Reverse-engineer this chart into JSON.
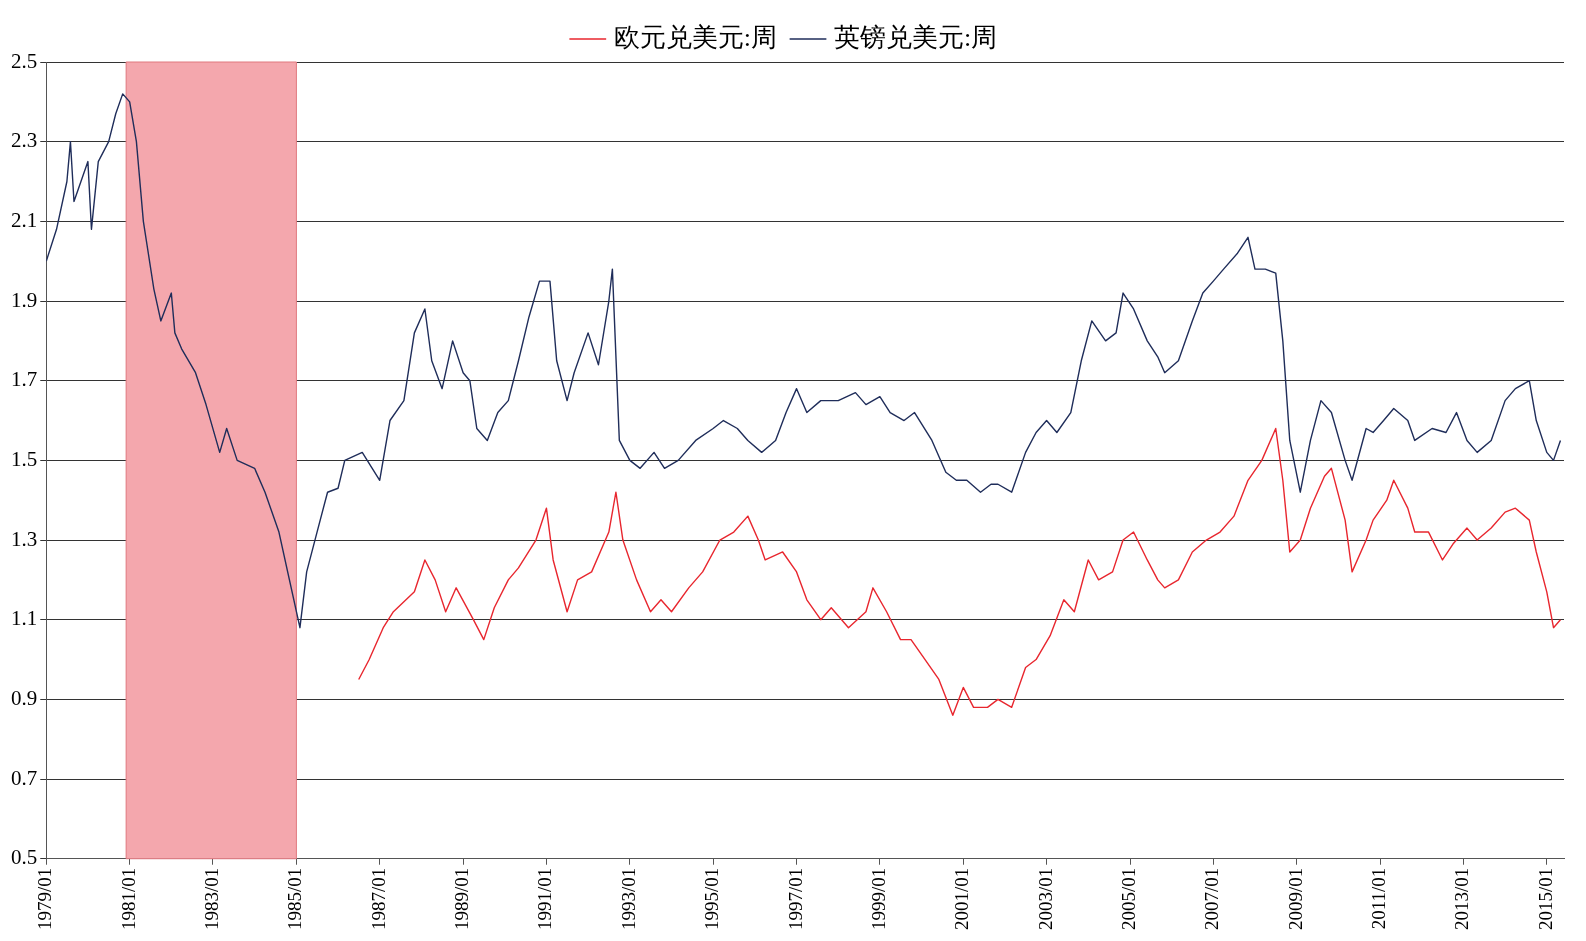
{
  "chart_data": {
    "type": "line",
    "legend": "top",
    "grid": "y",
    "marker": "none",
    "xlim": [
      "1979-01",
      "2015-06"
    ],
    "ylim": [
      0.5,
      2.5
    ],
    "yticks": [
      0.5,
      0.7,
      0.9,
      1.1,
      1.3,
      1.5,
      1.7,
      1.9,
      2.1,
      2.3,
      2.5
    ],
    "xticks": [
      {
        "value": "1979-01",
        "label": "1979/01"
      },
      {
        "value": "1981-01",
        "label": "1981/01"
      },
      {
        "value": "1983-01",
        "label": "1983/01"
      },
      {
        "value": "1985-01",
        "label": "1985/01"
      },
      {
        "value": "1987-01",
        "label": "1987/01"
      },
      {
        "value": "1989-01",
        "label": "1989/01"
      },
      {
        "value": "1991-01",
        "label": "1991/01"
      },
      {
        "value": "1993-01",
        "label": "1993/01"
      },
      {
        "value": "1995-01",
        "label": "1995/01"
      },
      {
        "value": "1997-01",
        "label": "1997/01"
      },
      {
        "value": "1999-01",
        "label": "1999/01"
      },
      {
        "value": "2001-01",
        "label": "2001/01"
      },
      {
        "value": "2003-01",
        "label": "2003/01"
      },
      {
        "value": "2005-01",
        "label": "2005/01"
      },
      {
        "value": "2007-01",
        "label": "2007/01"
      },
      {
        "value": "2009-01",
        "label": "2009/01"
      },
      {
        "value": "2011-01",
        "label": "2011/01"
      },
      {
        "value": "2013-01",
        "label": "2013/01"
      },
      {
        "value": "2015-01",
        "label": "2015/01"
      }
    ],
    "bands": [
      {
        "axis": "x",
        "from": "1980-12",
        "to": "1985-01",
        "color": "#f4a7ad"
      }
    ],
    "series": [
      {
        "name": "欧元兑美元:周",
        "color": "#e8262e",
        "x": [
          "1986-07",
          "1986-10",
          "1987-02",
          "1987-05",
          "1987-11",
          "1988-02",
          "1988-05",
          "1988-08",
          "1988-11",
          "1989-04",
          "1989-07",
          "1989-10",
          "1990-02",
          "1990-05",
          "1990-10",
          "1991-01",
          "1991-03",
          "1991-07",
          "1991-10",
          "1992-02",
          "1992-07",
          "1992-09",
          "1992-11",
          "1993-03",
          "1993-07",
          "1993-10",
          "1994-01",
          "1994-06",
          "1994-10",
          "1995-03",
          "1995-07",
          "1995-11",
          "1996-02",
          "1996-04",
          "1996-09",
          "1997-01",
          "1997-04",
          "1997-08",
          "1997-11",
          "1998-04",
          "1998-09",
          "1998-11",
          "1999-03",
          "1999-07",
          "1999-10",
          "2000-02",
          "2000-06",
          "2000-10",
          "2001-01",
          "2001-04",
          "2001-08",
          "2001-11",
          "2002-03",
          "2002-07",
          "2002-10",
          "2003-02",
          "2003-06",
          "2003-09",
          "2004-01",
          "2004-04",
          "2004-08",
          "2004-11",
          "2005-02",
          "2005-06",
          "2005-09",
          "2005-11",
          "2006-03",
          "2006-07",
          "2006-11",
          "2007-03",
          "2007-07",
          "2007-11",
          "2008-03",
          "2008-07",
          "2008-09",
          "2008-11",
          "2009-02",
          "2009-05",
          "2009-09",
          "2009-11",
          "2010-03",
          "2010-05",
          "2010-09",
          "2010-11",
          "2011-03",
          "2011-05",
          "2011-09",
          "2011-11",
          "2012-03",
          "2012-07",
          "2012-10",
          "2013-02",
          "2013-05",
          "2013-09",
          "2014-01",
          "2014-04",
          "2014-08",
          "2014-10",
          "2015-01",
          "2015-03",
          "2015-05"
        ],
        "values": [
          0.95,
          1.0,
          1.08,
          1.12,
          1.17,
          1.25,
          1.2,
          1.12,
          1.18,
          1.1,
          1.05,
          1.13,
          1.2,
          1.23,
          1.3,
          1.38,
          1.25,
          1.12,
          1.2,
          1.22,
          1.32,
          1.42,
          1.3,
          1.2,
          1.12,
          1.15,
          1.12,
          1.18,
          1.22,
          1.3,
          1.32,
          1.36,
          1.3,
          1.25,
          1.27,
          1.22,
          1.15,
          1.1,
          1.13,
          1.08,
          1.12,
          1.18,
          1.12,
          1.05,
          1.05,
          1.0,
          0.95,
          0.86,
          0.93,
          0.88,
          0.88,
          0.9,
          0.88,
          0.98,
          1.0,
          1.06,
          1.15,
          1.12,
          1.25,
          1.2,
          1.22,
          1.3,
          1.32,
          1.25,
          1.2,
          1.18,
          1.2,
          1.27,
          1.3,
          1.32,
          1.36,
          1.45,
          1.5,
          1.58,
          1.45,
          1.27,
          1.3,
          1.38,
          1.46,
          1.48,
          1.35,
          1.22,
          1.3,
          1.35,
          1.4,
          1.45,
          1.38,
          1.32,
          1.32,
          1.25,
          1.29,
          1.33,
          1.3,
          1.33,
          1.37,
          1.38,
          1.35,
          1.27,
          1.17,
          1.08,
          1.1
        ]
      },
      {
        "name": "英镑兑美元:周",
        "color": "#1f2d5a",
        "x": [
          "1979-01",
          "1979-04",
          "1979-07",
          "1979-08",
          "1979-09",
          "1979-11",
          "1980-01",
          "1980-02",
          "1980-04",
          "1980-07",
          "1980-09",
          "1980-11",
          "1981-01",
          "1981-03",
          "1981-05",
          "1981-08",
          "1981-10",
          "1982-01",
          "1982-02",
          "1982-04",
          "1982-08",
          "1982-11",
          "1983-03",
          "1983-05",
          "1983-08",
          "1984-01",
          "1984-04",
          "1984-08",
          "1984-11",
          "1985-02",
          "1985-04",
          "1985-07",
          "1985-10",
          "1986-01",
          "1986-03",
          "1986-08",
          "1987-01",
          "1987-04",
          "1987-08",
          "1987-11",
          "1988-02",
          "1988-04",
          "1988-07",
          "1988-10",
          "1989-01",
          "1989-03",
          "1989-05",
          "1989-08",
          "1989-11",
          "1990-02",
          "1990-05",
          "1990-08",
          "1990-11",
          "1991-02",
          "1991-04",
          "1991-07",
          "1991-09",
          "1992-01",
          "1992-04",
          "1992-07",
          "1992-08",
          "1992-10",
          "1993-01",
          "1993-04",
          "1993-08",
          "1993-11",
          "1994-03",
          "1994-08",
          "1995-01",
          "1995-04",
          "1995-08",
          "1995-11",
          "1996-03",
          "1996-07",
          "1996-10",
          "1997-01",
          "1997-04",
          "1997-08",
          "1998-01",
          "1998-06",
          "1998-09",
          "1999-01",
          "1999-04",
          "1999-08",
          "1999-11",
          "2000-04",
          "2000-08",
          "2000-11",
          "2001-02",
          "2001-06",
          "2001-09",
          "2001-11",
          "2002-03",
          "2002-07",
          "2002-10",
          "2003-01",
          "2003-04",
          "2003-08",
          "2003-11",
          "2004-02",
          "2004-06",
          "2004-09",
          "2004-11",
          "2005-02",
          "2005-06",
          "2005-09",
          "2005-11",
          "2006-03",
          "2006-07",
          "2006-10",
          "2007-01",
          "2007-04",
          "2007-08",
          "2007-11",
          "2008-01",
          "2008-04",
          "2008-07",
          "2008-09",
          "2008-11",
          "2009-02",
          "2009-05",
          "2009-08",
          "2009-11",
          "2010-03",
          "2010-05",
          "2010-09",
          "2010-11",
          "2011-02",
          "2011-05",
          "2011-09",
          "2011-11",
          "2012-04",
          "2012-08",
          "2012-11",
          "2013-02",
          "2013-05",
          "2013-09",
          "2014-01",
          "2014-04",
          "2014-08",
          "2014-10",
          "2015-01",
          "2015-03",
          "2015-05"
        ],
        "values": [
          2.0,
          2.08,
          2.2,
          2.3,
          2.15,
          2.2,
          2.25,
          2.08,
          2.25,
          2.3,
          2.37,
          2.42,
          2.4,
          2.3,
          2.1,
          1.93,
          1.85,
          1.92,
          1.82,
          1.78,
          1.72,
          1.64,
          1.52,
          1.58,
          1.5,
          1.48,
          1.42,
          1.32,
          1.2,
          1.08,
          1.22,
          1.32,
          1.42,
          1.43,
          1.5,
          1.52,
          1.45,
          1.6,
          1.65,
          1.82,
          1.88,
          1.75,
          1.68,
          1.8,
          1.72,
          1.7,
          1.58,
          1.55,
          1.62,
          1.65,
          1.75,
          1.86,
          1.95,
          1.95,
          1.75,
          1.65,
          1.72,
          1.82,
          1.74,
          1.9,
          1.98,
          1.55,
          1.5,
          1.48,
          1.52,
          1.48,
          1.5,
          1.55,
          1.58,
          1.6,
          1.58,
          1.55,
          1.52,
          1.55,
          1.62,
          1.68,
          1.62,
          1.65,
          1.65,
          1.67,
          1.64,
          1.66,
          1.62,
          1.6,
          1.62,
          1.55,
          1.47,
          1.45,
          1.45,
          1.42,
          1.44,
          1.44,
          1.42,
          1.52,
          1.57,
          1.6,
          1.57,
          1.62,
          1.75,
          1.85,
          1.8,
          1.82,
          1.92,
          1.88,
          1.8,
          1.76,
          1.72,
          1.75,
          1.85,
          1.92,
          1.95,
          1.98,
          2.02,
          2.06,
          1.98,
          1.98,
          1.97,
          1.8,
          1.55,
          1.42,
          1.55,
          1.65,
          1.62,
          1.5,
          1.45,
          1.58,
          1.57,
          1.6,
          1.63,
          1.6,
          1.55,
          1.58,
          1.57,
          1.62,
          1.55,
          1.52,
          1.55,
          1.65,
          1.68,
          1.7,
          1.6,
          1.52,
          1.5,
          1.55
        ]
      }
    ]
  }
}
